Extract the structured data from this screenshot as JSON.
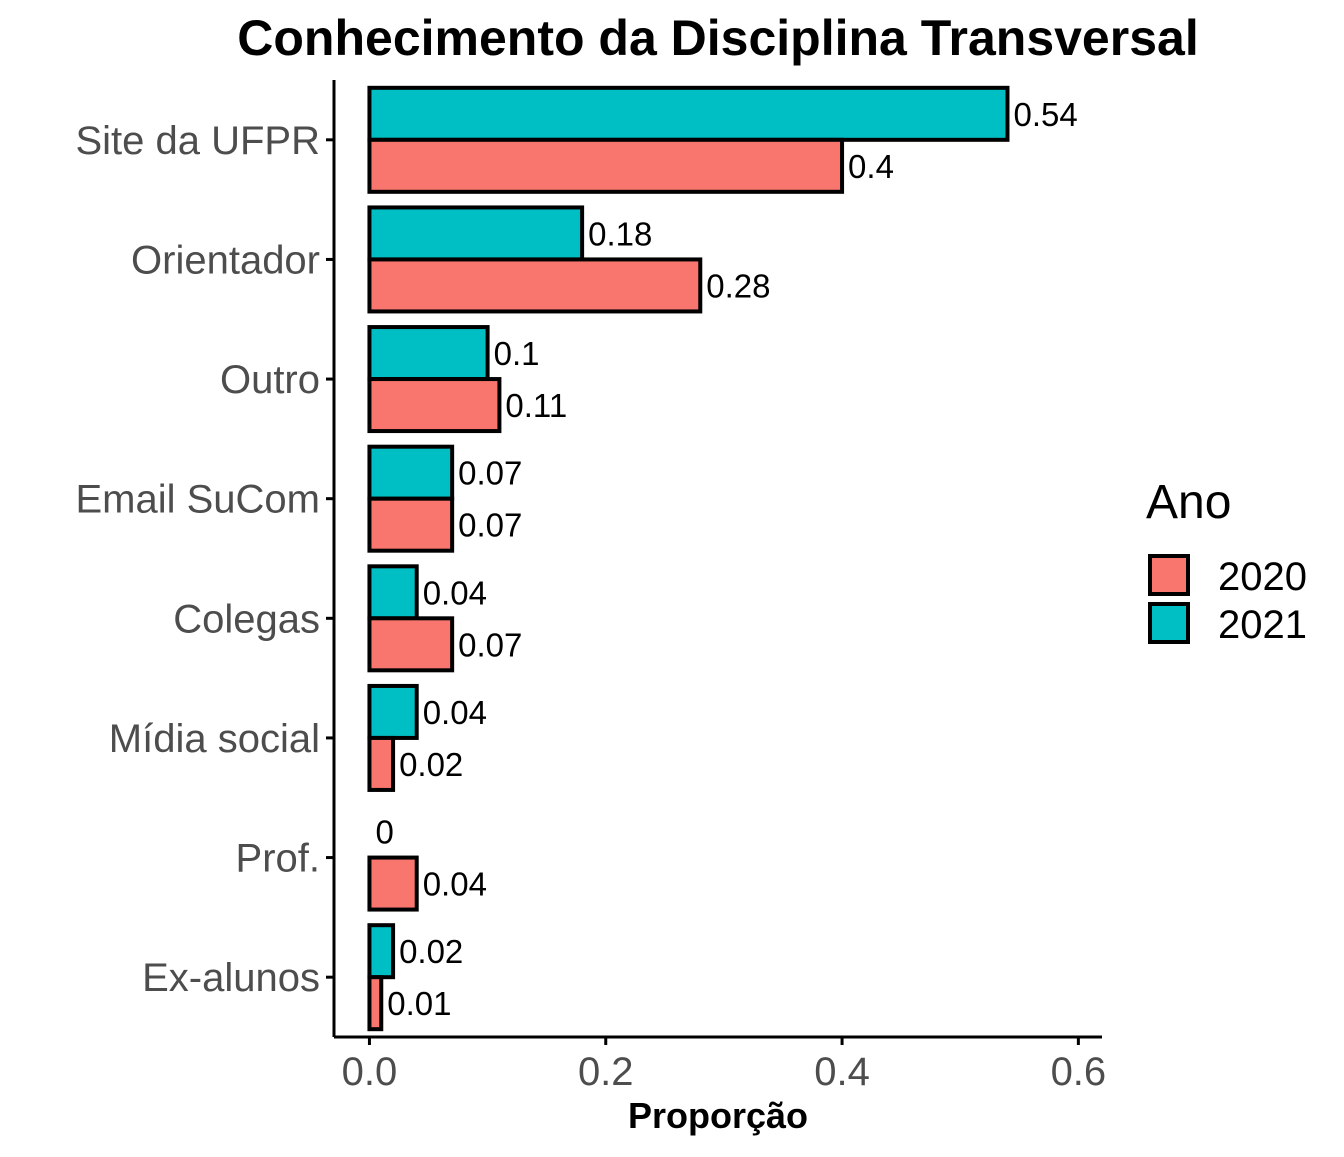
{
  "chart_data": {
    "type": "bar",
    "orientation": "horizontal",
    "title": "Conhecimento da Disciplina Transversal",
    "xlabel": "Proporção",
    "ylabel": "",
    "categories": [
      "Site da UFPR",
      "Orientador",
      "Outro",
      "Email SuCom",
      "Colegas",
      "Mídia social",
      "Prof.",
      "Ex-alunos"
    ],
    "series": [
      {
        "name": "2020",
        "color": "#F8766D",
        "values": [
          0.4,
          0.28,
          0.11,
          0.07,
          0.07,
          0.02,
          0.04,
          0.01
        ],
        "labels": [
          "0.4",
          "0.28",
          "0.11",
          "0.07",
          "0.07",
          "0.02",
          "0.04",
          "0.01"
        ]
      },
      {
        "name": "2021",
        "color": "#00BFC4",
        "values": [
          0.54,
          0.18,
          0.1,
          0.07,
          0.04,
          0.04,
          0,
          0.02
        ],
        "labels": [
          "0.54",
          "0.18",
          "0.1",
          "0.07",
          "0.04",
          "0.04",
          "0",
          "0.02"
        ]
      }
    ],
    "xlim": [
      -0.03,
      0.62
    ],
    "xticks": [
      0.0,
      0.2,
      0.4,
      0.6
    ],
    "xtick_labels": [
      "0.0",
      "0.2",
      "0.4",
      "0.6"
    ],
    "grid": false,
    "legend": {
      "title": "Ano",
      "position": "right"
    }
  }
}
